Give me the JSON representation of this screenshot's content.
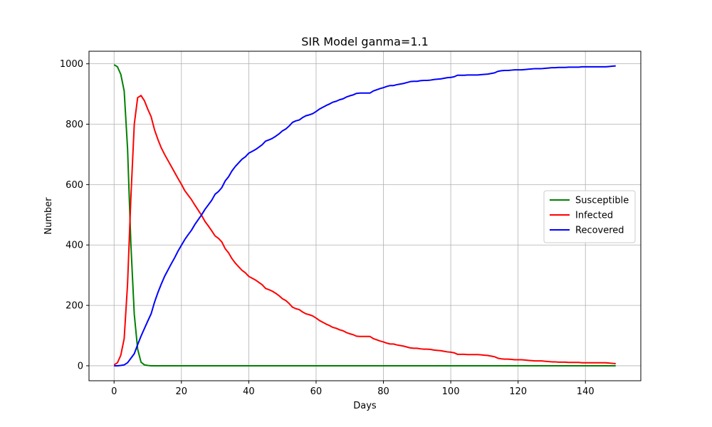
{
  "chart_data": {
    "type": "line",
    "title": "SIR Model ganma=1.1",
    "xlabel": "Days",
    "ylabel": "Number",
    "xlim": [
      -7.45,
      156.45
    ],
    "ylim": [
      -49.6,
      1041.6
    ],
    "xticks": [
      0,
      20,
      40,
      60,
      80,
      100,
      120,
      140
    ],
    "yticks": [
      0,
      200,
      400,
      600,
      800,
      1000
    ],
    "grid": true,
    "legend_position": "center-right",
    "series": [
      {
        "name": "Susceptible",
        "color": "#008000",
        "points": [
          [
            0,
            997
          ],
          [
            1,
            990
          ],
          [
            2,
            965
          ],
          [
            3,
            910
          ],
          [
            4,
            720
          ],
          [
            5,
            400
          ],
          [
            6,
            170
          ],
          [
            7,
            55
          ],
          [
            8,
            12
          ],
          [
            9,
            3
          ],
          [
            10,
            1
          ],
          [
            11,
            0
          ],
          [
            149,
            0
          ]
        ]
      },
      {
        "name": "Infected",
        "color": "#ff0000",
        "points": [
          [
            0,
            3
          ],
          [
            1,
            10
          ],
          [
            2,
            35
          ],
          [
            3,
            90
          ],
          [
            4,
            270
          ],
          [
            5,
            560
          ],
          [
            6,
            800
          ],
          [
            7,
            888
          ],
          [
            8,
            895
          ],
          [
            9,
            878
          ],
          [
            10,
            850
          ],
          [
            11,
            825
          ],
          [
            12,
            782
          ],
          [
            13,
            750
          ],
          [
            14,
            722
          ],
          [
            15,
            700
          ],
          [
            16,
            680
          ],
          [
            17,
            660
          ],
          [
            18,
            640
          ],
          [
            19,
            620
          ],
          [
            20,
            601
          ],
          [
            21,
            580
          ],
          [
            22,
            565
          ],
          [
            23,
            550
          ],
          [
            24,
            532
          ],
          [
            25,
            515
          ],
          [
            26,
            498
          ],
          [
            27,
            478
          ],
          [
            28,
            463
          ],
          [
            29,
            447
          ],
          [
            30,
            430
          ],
          [
            31,
            422
          ],
          [
            32,
            410
          ],
          [
            33,
            388
          ],
          [
            34,
            374
          ],
          [
            35,
            355
          ],
          [
            36,
            340
          ],
          [
            37,
            328
          ],
          [
            38,
            316
          ],
          [
            39,
            308
          ],
          [
            40,
            296
          ],
          [
            41,
            290
          ],
          [
            42,
            284
          ],
          [
            43,
            276
          ],
          [
            44,
            268
          ],
          [
            45,
            256
          ],
          [
            46,
            252
          ],
          [
            47,
            247
          ],
          [
            48,
            240
          ],
          [
            49,
            232
          ],
          [
            50,
            222
          ],
          [
            51,
            216
          ],
          [
            52,
            206
          ],
          [
            53,
            194
          ],
          [
            54,
            189
          ],
          [
            55,
            186
          ],
          [
            56,
            178
          ],
          [
            57,
            172
          ],
          [
            58,
            169
          ],
          [
            59,
            165
          ],
          [
            60,
            158
          ],
          [
            61,
            150
          ],
          [
            62,
            144
          ],
          [
            63,
            138
          ],
          [
            64,
            133
          ],
          [
            65,
            127
          ],
          [
            66,
            124
          ],
          [
            67,
            119
          ],
          [
            68,
            116
          ],
          [
            69,
            110
          ],
          [
            70,
            106
          ],
          [
            71,
            103
          ],
          [
            72,
            98
          ],
          [
            73,
            97
          ],
          [
            74,
            97
          ],
          [
            75,
            97
          ],
          [
            76,
            97
          ],
          [
            77,
            90
          ],
          [
            78,
            86
          ],
          [
            79,
            82
          ],
          [
            80,
            79
          ],
          [
            81,
            75
          ],
          [
            82,
            72
          ],
          [
            83,
            72
          ],
          [
            84,
            69
          ],
          [
            85,
            67
          ],
          [
            86,
            65
          ],
          [
            87,
            62
          ],
          [
            88,
            59
          ],
          [
            89,
            58
          ],
          [
            90,
            58
          ],
          [
            91,
            56
          ],
          [
            92,
            55
          ],
          [
            93,
            55
          ],
          [
            94,
            54
          ],
          [
            95,
            52
          ],
          [
            96,
            51
          ],
          [
            97,
            50
          ],
          [
            98,
            48
          ],
          [
            99,
            46
          ],
          [
            100,
            45
          ],
          [
            101,
            43
          ],
          [
            102,
            38
          ],
          [
            103,
            38
          ],
          [
            104,
            38
          ],
          [
            105,
            37
          ],
          [
            106,
            37
          ],
          [
            107,
            37
          ],
          [
            108,
            37
          ],
          [
            109,
            36
          ],
          [
            110,
            35
          ],
          [
            111,
            34
          ],
          [
            112,
            32
          ],
          [
            113,
            30
          ],
          [
            114,
            25
          ],
          [
            115,
            23
          ],
          [
            116,
            22
          ],
          [
            117,
            22
          ],
          [
            118,
            21
          ],
          [
            119,
            20
          ],
          [
            120,
            20
          ],
          [
            121,
            20
          ],
          [
            122,
            19
          ],
          [
            123,
            18
          ],
          [
            124,
            17
          ],
          [
            125,
            16
          ],
          [
            126,
            16
          ],
          [
            127,
            16
          ],
          [
            128,
            15
          ],
          [
            129,
            14
          ],
          [
            130,
            13
          ],
          [
            131,
            13
          ],
          [
            132,
            12
          ],
          [
            133,
            12
          ],
          [
            134,
            12
          ],
          [
            135,
            11
          ],
          [
            136,
            11
          ],
          [
            137,
            11
          ],
          [
            138,
            11
          ],
          [
            139,
            10
          ],
          [
            140,
            10
          ],
          [
            141,
            10
          ],
          [
            142,
            10
          ],
          [
            143,
            10
          ],
          [
            144,
            10
          ],
          [
            145,
            10
          ],
          [
            146,
            10
          ],
          [
            147,
            9
          ],
          [
            148,
            8
          ],
          [
            149,
            7
          ]
        ]
      },
      {
        "name": "Recovered",
        "color": "#0000ff",
        "points": [
          [
            0,
            0
          ],
          [
            1,
            0
          ],
          [
            2,
            1
          ],
          [
            3,
            3
          ],
          [
            4,
            10
          ],
          [
            5,
            25
          ],
          [
            6,
            40
          ],
          [
            7,
            70
          ],
          [
            8,
            98
          ],
          [
            9,
            123
          ],
          [
            10,
            148
          ],
          [
            11,
            172
          ],
          [
            12,
            210
          ],
          [
            13,
            242
          ],
          [
            14,
            270
          ],
          [
            15,
            296
          ],
          [
            16,
            317
          ],
          [
            17,
            338
          ],
          [
            18,
            358
          ],
          [
            19,
            380
          ],
          [
            20,
            399
          ],
          [
            21,
            418
          ],
          [
            22,
            434
          ],
          [
            23,
            449
          ],
          [
            24,
            468
          ],
          [
            25,
            484
          ],
          [
            26,
            500
          ],
          [
            27,
            518
          ],
          [
            28,
            533
          ],
          [
            29,
            548
          ],
          [
            30,
            568
          ],
          [
            31,
            577
          ],
          [
            32,
            590
          ],
          [
            33,
            612
          ],
          [
            34,
            626
          ],
          [
            35,
            645
          ],
          [
            36,
            660
          ],
          [
            37,
            672
          ],
          [
            38,
            684
          ],
          [
            39,
            692
          ],
          [
            40,
            704
          ],
          [
            41,
            710
          ],
          [
            42,
            716
          ],
          [
            43,
            724
          ],
          [
            44,
            732
          ],
          [
            45,
            744
          ],
          [
            46,
            748
          ],
          [
            47,
            753
          ],
          [
            48,
            760
          ],
          [
            49,
            768
          ],
          [
            50,
            778
          ],
          [
            51,
            784
          ],
          [
            52,
            794
          ],
          [
            53,
            806
          ],
          [
            54,
            811
          ],
          [
            55,
            814
          ],
          [
            56,
            822
          ],
          [
            57,
            828
          ],
          [
            58,
            831
          ],
          [
            59,
            835
          ],
          [
            60,
            842
          ],
          [
            61,
            850
          ],
          [
            62,
            856
          ],
          [
            63,
            862
          ],
          [
            64,
            867
          ],
          [
            65,
            873
          ],
          [
            66,
            876
          ],
          [
            67,
            881
          ],
          [
            68,
            884
          ],
          [
            69,
            890
          ],
          [
            70,
            894
          ],
          [
            71,
            897
          ],
          [
            72,
            902
          ],
          [
            73,
            903
          ],
          [
            74,
            903
          ],
          [
            75,
            903
          ],
          [
            76,
            903
          ],
          [
            77,
            910
          ],
          [
            78,
            914
          ],
          [
            79,
            918
          ],
          [
            80,
            921
          ],
          [
            81,
            925
          ],
          [
            82,
            928
          ],
          [
            83,
            928
          ],
          [
            84,
            931
          ],
          [
            85,
            933
          ],
          [
            86,
            935
          ],
          [
            87,
            938
          ],
          [
            88,
            941
          ],
          [
            89,
            942
          ],
          [
            90,
            942
          ],
          [
            91,
            944
          ],
          [
            92,
            945
          ],
          [
            93,
            945
          ],
          [
            94,
            946
          ],
          [
            95,
            948
          ],
          [
            96,
            949
          ],
          [
            97,
            950
          ],
          [
            98,
            952
          ],
          [
            99,
            954
          ],
          [
            100,
            955
          ],
          [
            101,
            957
          ],
          [
            102,
            962
          ],
          [
            103,
            962
          ],
          [
            104,
            962
          ],
          [
            105,
            963
          ],
          [
            106,
            963
          ],
          [
            107,
            963
          ],
          [
            108,
            963
          ],
          [
            109,
            964
          ],
          [
            110,
            965
          ],
          [
            111,
            966
          ],
          [
            112,
            968
          ],
          [
            113,
            970
          ],
          [
            114,
            975
          ],
          [
            115,
            977
          ],
          [
            116,
            978
          ],
          [
            117,
            978
          ],
          [
            118,
            979
          ],
          [
            119,
            980
          ],
          [
            120,
            980
          ],
          [
            121,
            980
          ],
          [
            122,
            981
          ],
          [
            123,
            982
          ],
          [
            124,
            983
          ],
          [
            125,
            984
          ],
          [
            126,
            984
          ],
          [
            127,
            984
          ],
          [
            128,
            985
          ],
          [
            129,
            986
          ],
          [
            130,
            987
          ],
          [
            131,
            987
          ],
          [
            132,
            988
          ],
          [
            133,
            988
          ],
          [
            134,
            988
          ],
          [
            135,
            989
          ],
          [
            136,
            989
          ],
          [
            137,
            989
          ],
          [
            138,
            989
          ],
          [
            139,
            990
          ],
          [
            140,
            990
          ],
          [
            141,
            990
          ],
          [
            142,
            990
          ],
          [
            143,
            990
          ],
          [
            144,
            990
          ],
          [
            145,
            990
          ],
          [
            146,
            990
          ],
          [
            147,
            991
          ],
          [
            148,
            992
          ],
          [
            149,
            993
          ]
        ]
      }
    ]
  }
}
